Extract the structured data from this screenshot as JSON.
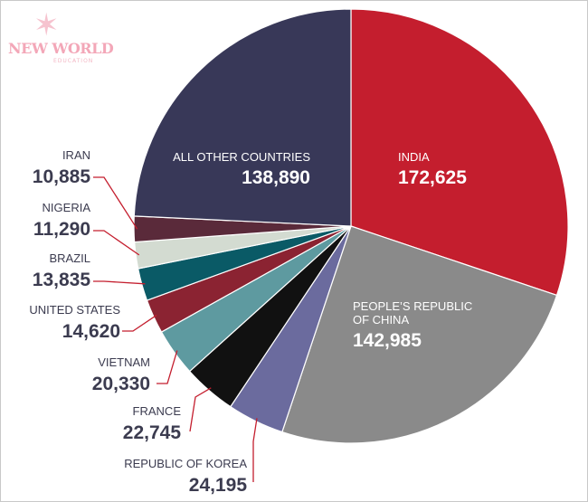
{
  "logo": {
    "icon": "star-person-icon",
    "title": "NEW WORLD",
    "subtitle": "EDUCATION"
  },
  "chart_data": {
    "type": "pie",
    "title": "",
    "slices": [
      {
        "label": "INDIA",
        "value": 172625,
        "display": "172,625",
        "color": "#c41e2e"
      },
      {
        "label": "PEOPLE’S REPUBLIC OF CHINA",
        "label_lines": [
          "PEOPLE’S REPUBLIC",
          "OF CHINA"
        ],
        "value": 142985,
        "display": "142,985",
        "color": "#8a8a8a"
      },
      {
        "label": "REPUBLIC OF KOREA",
        "value": 24195,
        "display": "24,195",
        "color": "#6b6b9e"
      },
      {
        "label": "FRANCE",
        "value": 22745,
        "display": "22,745",
        "color": "#111111"
      },
      {
        "label": "VIETNAM",
        "value": 20330,
        "display": "20,330",
        "color": "#5e9aa0"
      },
      {
        "label": "UNITED STATES",
        "value": 14620,
        "display": "14,620",
        "color": "#8b2332"
      },
      {
        "label": "BRAZIL",
        "value": 13835,
        "display": "13,835",
        "color": "#0a5a66"
      },
      {
        "label": "NIGERIA",
        "value": 11290,
        "display": "11,290",
        "color": "#d3dbd1"
      },
      {
        "label": "IRAN",
        "value": 10885,
        "display": "10,885",
        "color": "#5a2a3a"
      },
      {
        "label": "ALL OTHER COUNTRIES",
        "value": 138890,
        "display": "138,890",
        "color": "#383858"
      }
    ],
    "leader_line_color": "#c41e2e"
  }
}
